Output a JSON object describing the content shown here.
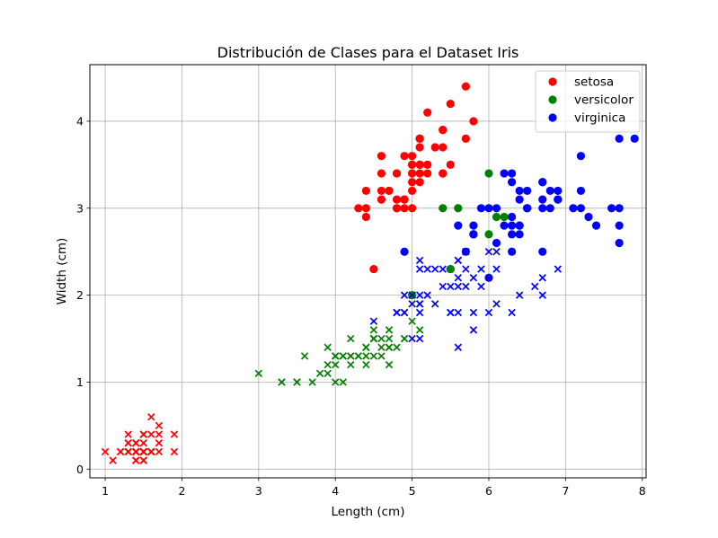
{
  "chart_data": {
    "type": "scatter",
    "title": "Distribución de Clases para el Dataset Iris",
    "xlabel": "Length (cm)",
    "ylabel": "Width (cm)",
    "xlim": [
      0.8,
      8.05
    ],
    "ylim": [
      -0.1,
      4.65
    ],
    "xticks": [
      1,
      2,
      3,
      4,
      5,
      6,
      7,
      8
    ],
    "yticks": [
      0,
      1,
      2,
      3,
      4
    ],
    "grid": true,
    "legend_position": "top-right",
    "markers": {
      "sepal": "circle",
      "petal": "x"
    },
    "series": [
      {
        "name": "setosa",
        "color": "#ff0000",
        "sepal": [
          [
            5.1,
            3.5
          ],
          [
            4.9,
            3.0
          ],
          [
            4.7,
            3.2
          ],
          [
            4.6,
            3.1
          ],
          [
            5.0,
            3.6
          ],
          [
            5.4,
            3.9
          ],
          [
            4.6,
            3.4
          ],
          [
            5.0,
            3.4
          ],
          [
            4.4,
            2.9
          ],
          [
            4.9,
            3.1
          ],
          [
            5.4,
            3.7
          ],
          [
            4.8,
            3.4
          ],
          [
            4.8,
            3.0
          ],
          [
            4.3,
            3.0
          ],
          [
            5.8,
            4.0
          ],
          [
            5.7,
            4.4
          ],
          [
            5.4,
            3.9
          ],
          [
            5.1,
            3.5
          ],
          [
            5.7,
            3.8
          ],
          [
            5.1,
            3.8
          ],
          [
            5.4,
            3.4
          ],
          [
            5.1,
            3.7
          ],
          [
            4.6,
            3.6
          ],
          [
            5.1,
            3.3
          ],
          [
            4.8,
            3.4
          ],
          [
            5.0,
            3.0
          ],
          [
            5.0,
            3.4
          ],
          [
            5.2,
            3.5
          ],
          [
            5.2,
            3.4
          ],
          [
            4.7,
            3.2
          ],
          [
            4.8,
            3.1
          ],
          [
            5.4,
            3.4
          ],
          [
            5.2,
            4.1
          ],
          [
            5.5,
            4.2
          ],
          [
            4.9,
            3.1
          ],
          [
            5.0,
            3.2
          ],
          [
            5.5,
            3.5
          ],
          [
            4.9,
            3.6
          ],
          [
            4.4,
            3.0
          ],
          [
            5.1,
            3.4
          ],
          [
            5.0,
            3.5
          ],
          [
            4.5,
            2.3
          ],
          [
            4.4,
            3.2
          ],
          [
            5.0,
            3.5
          ],
          [
            5.1,
            3.8
          ],
          [
            4.8,
            3.0
          ],
          [
            5.1,
            3.8
          ],
          [
            4.6,
            3.2
          ],
          [
            5.3,
            3.7
          ],
          [
            5.0,
            3.3
          ]
        ],
        "petal": [
          [
            1.4,
            0.2
          ],
          [
            1.4,
            0.2
          ],
          [
            1.3,
            0.2
          ],
          [
            1.5,
            0.2
          ],
          [
            1.4,
            0.2
          ],
          [
            1.7,
            0.4
          ],
          [
            1.4,
            0.3
          ],
          [
            1.5,
            0.2
          ],
          [
            1.4,
            0.2
          ],
          [
            1.5,
            0.1
          ],
          [
            1.5,
            0.2
          ],
          [
            1.6,
            0.2
          ],
          [
            1.4,
            0.1
          ],
          [
            1.1,
            0.1
          ],
          [
            1.2,
            0.2
          ],
          [
            1.5,
            0.4
          ],
          [
            1.3,
            0.4
          ],
          [
            1.4,
            0.3
          ],
          [
            1.7,
            0.3
          ],
          [
            1.5,
            0.3
          ],
          [
            1.7,
            0.2
          ],
          [
            1.5,
            0.4
          ],
          [
            1.0,
            0.2
          ],
          [
            1.7,
            0.5
          ],
          [
            1.9,
            0.2
          ],
          [
            1.6,
            0.2
          ],
          [
            1.6,
            0.4
          ],
          [
            1.5,
            0.2
          ],
          [
            1.4,
            0.2
          ],
          [
            1.6,
            0.2
          ],
          [
            1.6,
            0.2
          ],
          [
            1.5,
            0.4
          ],
          [
            1.5,
            0.1
          ],
          [
            1.4,
            0.2
          ],
          [
            1.5,
            0.2
          ],
          [
            1.2,
            0.2
          ],
          [
            1.3,
            0.2
          ],
          [
            1.4,
            0.1
          ],
          [
            1.3,
            0.2
          ],
          [
            1.5,
            0.2
          ],
          [
            1.3,
            0.3
          ],
          [
            1.3,
            0.3
          ],
          [
            1.3,
            0.2
          ],
          [
            1.6,
            0.6
          ],
          [
            1.9,
            0.4
          ],
          [
            1.4,
            0.3
          ],
          [
            1.6,
            0.2
          ],
          [
            1.4,
            0.2
          ],
          [
            1.5,
            0.2
          ],
          [
            1.4,
            0.2
          ]
        ]
      },
      {
        "name": "versicolor",
        "color": "#008000",
        "sepal": [
          [
            5.0,
            2.0
          ],
          [
            6.0,
            2.7
          ],
          [
            5.5,
            2.3
          ],
          [
            5.4,
            3.0
          ],
          [
            6.1,
            2.9
          ],
          [
            6.2,
            2.9
          ],
          [
            6.0,
            3.4
          ],
          [
            5.6,
            3.0
          ],
          [
            5.5,
            2.3
          ],
          [
            5.8,
            2.7
          ]
        ],
        "petal": [
          [
            4.7,
            1.4
          ],
          [
            4.5,
            1.5
          ],
          [
            4.9,
            1.5
          ],
          [
            4.0,
            1.3
          ],
          [
            4.6,
            1.5
          ],
          [
            4.5,
            1.3
          ],
          [
            4.7,
            1.6
          ],
          [
            3.3,
            1.0
          ],
          [
            4.6,
            1.3
          ],
          [
            3.9,
            1.4
          ],
          [
            3.5,
            1.0
          ],
          [
            4.2,
            1.5
          ],
          [
            4.0,
            1.0
          ],
          [
            4.7,
            1.4
          ],
          [
            3.6,
            1.3
          ],
          [
            4.4,
            1.4
          ],
          [
            4.5,
            1.5
          ],
          [
            4.1,
            1.0
          ],
          [
            4.5,
            1.5
          ],
          [
            3.9,
            1.1
          ],
          [
            4.8,
            1.8
          ],
          [
            4.0,
            1.3
          ],
          [
            4.9,
            1.5
          ],
          [
            4.7,
            1.2
          ],
          [
            4.3,
            1.3
          ],
          [
            4.4,
            1.4
          ],
          [
            4.8,
            1.4
          ],
          [
            5.0,
            1.7
          ],
          [
            4.5,
            1.5
          ],
          [
            3.5,
            1.0
          ],
          [
            3.8,
            1.1
          ],
          [
            3.7,
            1.0
          ],
          [
            3.9,
            1.2
          ],
          [
            5.1,
            1.6
          ],
          [
            4.5,
            1.5
          ],
          [
            4.5,
            1.6
          ],
          [
            4.7,
            1.5
          ],
          [
            4.4,
            1.3
          ],
          [
            4.1,
            1.3
          ],
          [
            4.0,
            1.3
          ],
          [
            4.4,
            1.2
          ],
          [
            4.6,
            1.4
          ],
          [
            4.0,
            1.2
          ],
          [
            3.3,
            1.0
          ],
          [
            4.2,
            1.3
          ],
          [
            4.2,
            1.2
          ],
          [
            4.2,
            1.3
          ],
          [
            4.3,
            1.3
          ],
          [
            3.0,
            1.1
          ],
          [
            4.1,
            1.3
          ]
        ]
      },
      {
        "name": "virginica",
        "color": "#0000ff",
        "sepal": [
          [
            6.3,
            3.3
          ],
          [
            5.8,
            2.7
          ],
          [
            7.1,
            3.0
          ],
          [
            6.3,
            2.9
          ],
          [
            6.5,
            3.0
          ],
          [
            7.6,
            3.0
          ],
          [
            4.9,
            2.5
          ],
          [
            7.3,
            2.9
          ],
          [
            6.7,
            2.5
          ],
          [
            7.2,
            3.6
          ],
          [
            6.5,
            3.2
          ],
          [
            6.4,
            2.7
          ],
          [
            6.8,
            3.0
          ],
          [
            5.7,
            2.5
          ],
          [
            5.8,
            2.8
          ],
          [
            6.4,
            3.2
          ],
          [
            6.5,
            3.0
          ],
          [
            7.7,
            3.8
          ],
          [
            7.7,
            2.6
          ],
          [
            6.0,
            2.2
          ],
          [
            6.9,
            3.2
          ],
          [
            5.6,
            2.8
          ],
          [
            7.7,
            2.8
          ],
          [
            6.3,
            2.7
          ],
          [
            6.7,
            3.3
          ],
          [
            7.2,
            3.2
          ],
          [
            6.2,
            2.8
          ],
          [
            6.1,
            3.0
          ],
          [
            6.4,
            2.8
          ],
          [
            7.2,
            3.0
          ],
          [
            7.4,
            2.8
          ],
          [
            7.9,
            3.8
          ],
          [
            6.4,
            2.8
          ],
          [
            6.3,
            2.8
          ],
          [
            6.1,
            2.6
          ],
          [
            7.7,
            3.0
          ],
          [
            6.3,
            3.4
          ],
          [
            6.4,
            3.1
          ],
          [
            6.0,
            3.0
          ],
          [
            6.9,
            3.1
          ],
          [
            6.7,
            3.1
          ],
          [
            6.9,
            3.1
          ],
          [
            5.8,
            2.7
          ],
          [
            6.8,
            3.2
          ],
          [
            6.7,
            3.3
          ],
          [
            6.7,
            3.0
          ],
          [
            6.3,
            2.5
          ],
          [
            6.5,
            3.0
          ],
          [
            6.2,
            3.4
          ],
          [
            5.9,
            3.0
          ]
        ],
        "petal": [
          [
            6.0,
            2.5
          ],
          [
            5.1,
            1.9
          ],
          [
            5.9,
            2.1
          ],
          [
            5.6,
            1.8
          ],
          [
            5.8,
            2.2
          ],
          [
            6.6,
            2.1
          ],
          [
            4.5,
            1.7
          ],
          [
            6.3,
            1.8
          ],
          [
            5.8,
            1.8
          ],
          [
            6.1,
            2.5
          ],
          [
            5.1,
            2.0
          ],
          [
            5.3,
            1.9
          ],
          [
            5.5,
            2.1
          ],
          [
            5.0,
            2.0
          ],
          [
            5.1,
            2.4
          ],
          [
            5.3,
            2.3
          ],
          [
            5.5,
            1.8
          ],
          [
            6.7,
            2.2
          ],
          [
            6.9,
            2.3
          ],
          [
            5.0,
            1.5
          ],
          [
            5.7,
            2.3
          ],
          [
            4.9,
            2.0
          ],
          [
            6.7,
            2.0
          ],
          [
            4.9,
            1.8
          ],
          [
            5.7,
            2.1
          ],
          [
            6.0,
            1.8
          ],
          [
            4.8,
            1.8
          ],
          [
            4.9,
            1.8
          ],
          [
            5.6,
            2.1
          ],
          [
            5.8,
            1.6
          ],
          [
            6.1,
            1.9
          ],
          [
            6.4,
            2.0
          ],
          [
            5.6,
            2.2
          ],
          [
            5.1,
            1.5
          ],
          [
            5.6,
            1.4
          ],
          [
            6.1,
            2.3
          ],
          [
            5.6,
            2.4
          ],
          [
            5.5,
            1.8
          ],
          [
            4.8,
            1.8
          ],
          [
            5.4,
            2.1
          ],
          [
            5.6,
            2.4
          ],
          [
            5.1,
            2.3
          ],
          [
            5.1,
            1.9
          ],
          [
            5.9,
            2.3
          ],
          [
            5.7,
            2.5
          ],
          [
            5.2,
            2.3
          ],
          [
            5.0,
            1.9
          ],
          [
            5.2,
            2.0
          ],
          [
            5.4,
            2.3
          ],
          [
            5.1,
            1.8
          ]
        ]
      }
    ]
  }
}
